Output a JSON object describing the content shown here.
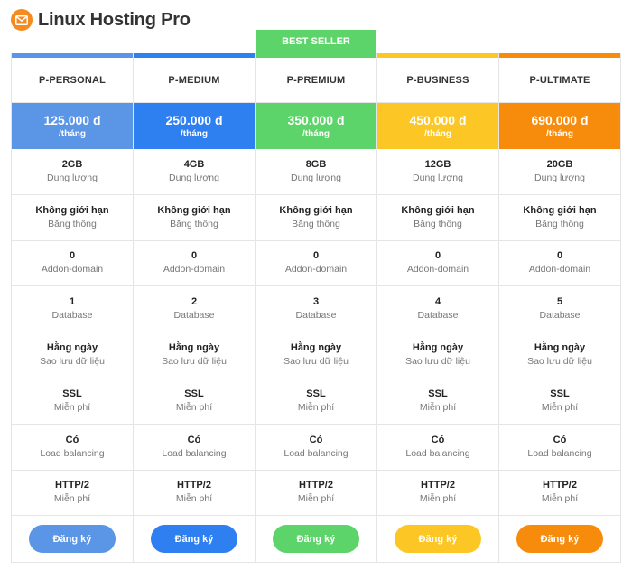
{
  "header": {
    "title": "Linux Hosting Pro",
    "logo_icon": "envelope-icon",
    "logo_color": "#f58a1f"
  },
  "badge": {
    "label": "BEST SELLER",
    "color": "#5dd469",
    "plan_index": 2
  },
  "plans": [
    {
      "name": "P-PERSONAL",
      "price": "125.000 đ",
      "unit": "/tháng",
      "color": "#5b95e6",
      "button": "Đăng ký",
      "features": [
        {
          "value": "2GB",
          "label": "Dung lượng"
        },
        {
          "value": "Không giới hạn",
          "label": "Băng thông"
        },
        {
          "value": "0",
          "label": "Addon-domain"
        },
        {
          "value": "1",
          "label": "Database"
        },
        {
          "value": "Hằng ngày",
          "label": "Sao lưu dữ liệu"
        },
        {
          "value": "SSL",
          "label": "Miễn phí"
        },
        {
          "value": "Có",
          "label": "Load balancing"
        },
        {
          "value": "HTTP/2",
          "label": "Miễn phí"
        }
      ]
    },
    {
      "name": "P-MEDIUM",
      "price": "250.000 đ",
      "unit": "/tháng",
      "color": "#2e7ff0",
      "button": "Đăng ký",
      "features": [
        {
          "value": "4GB",
          "label": "Dung lượng"
        },
        {
          "value": "Không giới hạn",
          "label": "Băng thông"
        },
        {
          "value": "0",
          "label": "Addon-domain"
        },
        {
          "value": "2",
          "label": "Database"
        },
        {
          "value": "Hằng ngày",
          "label": "Sao lưu dữ liệu"
        },
        {
          "value": "SSL",
          "label": "Miễn phí"
        },
        {
          "value": "Có",
          "label": "Load balancing"
        },
        {
          "value": "HTTP/2",
          "label": "Miễn phí"
        }
      ]
    },
    {
      "name": "P-PREMIUM",
      "price": "350.000 đ",
      "unit": "/tháng",
      "color": "#5dd469",
      "button": "Đăng ký",
      "features": [
        {
          "value": "8GB",
          "label": "Dung lượng"
        },
        {
          "value": "Không giới hạn",
          "label": "Băng thông"
        },
        {
          "value": "0",
          "label": "Addon-domain"
        },
        {
          "value": "3",
          "label": "Database"
        },
        {
          "value": "Hằng ngày",
          "label": "Sao lưu dữ liệu"
        },
        {
          "value": "SSL",
          "label": "Miễn phí"
        },
        {
          "value": "Có",
          "label": "Load balancing"
        },
        {
          "value": "HTTP/2",
          "label": "Miễn phí"
        }
      ]
    },
    {
      "name": "P-BUSINESS",
      "price": "450.000 đ",
      "unit": "/tháng",
      "color": "#fcc624",
      "button": "Đăng ký",
      "features": [
        {
          "value": "12GB",
          "label": "Dung lượng"
        },
        {
          "value": "Không giới hạn",
          "label": "Băng thông"
        },
        {
          "value": "0",
          "label": "Addon-domain"
        },
        {
          "value": "4",
          "label": "Database"
        },
        {
          "value": "Hằng ngày",
          "label": "Sao lưu dữ liệu"
        },
        {
          "value": "SSL",
          "label": "Miễn phí"
        },
        {
          "value": "Có",
          "label": "Load balancing"
        },
        {
          "value": "HTTP/2",
          "label": "Miễn phí"
        }
      ]
    },
    {
      "name": "P-ULTIMATE",
      "price": "690.000 đ",
      "unit": "/tháng",
      "color": "#f78c0c",
      "button": "Đăng ký",
      "features": [
        {
          "value": "20GB",
          "label": "Dung lượng"
        },
        {
          "value": "Không giới hạn",
          "label": "Băng thông"
        },
        {
          "value": "0",
          "label": "Addon-domain"
        },
        {
          "value": "5",
          "label": "Database"
        },
        {
          "value": "Hằng ngày",
          "label": "Sao lưu dữ liệu"
        },
        {
          "value": "SSL",
          "label": "Miễn phí"
        },
        {
          "value": "Có",
          "label": "Load balancing"
        },
        {
          "value": "HTTP/2",
          "label": "Miễn phí"
        }
      ]
    }
  ]
}
